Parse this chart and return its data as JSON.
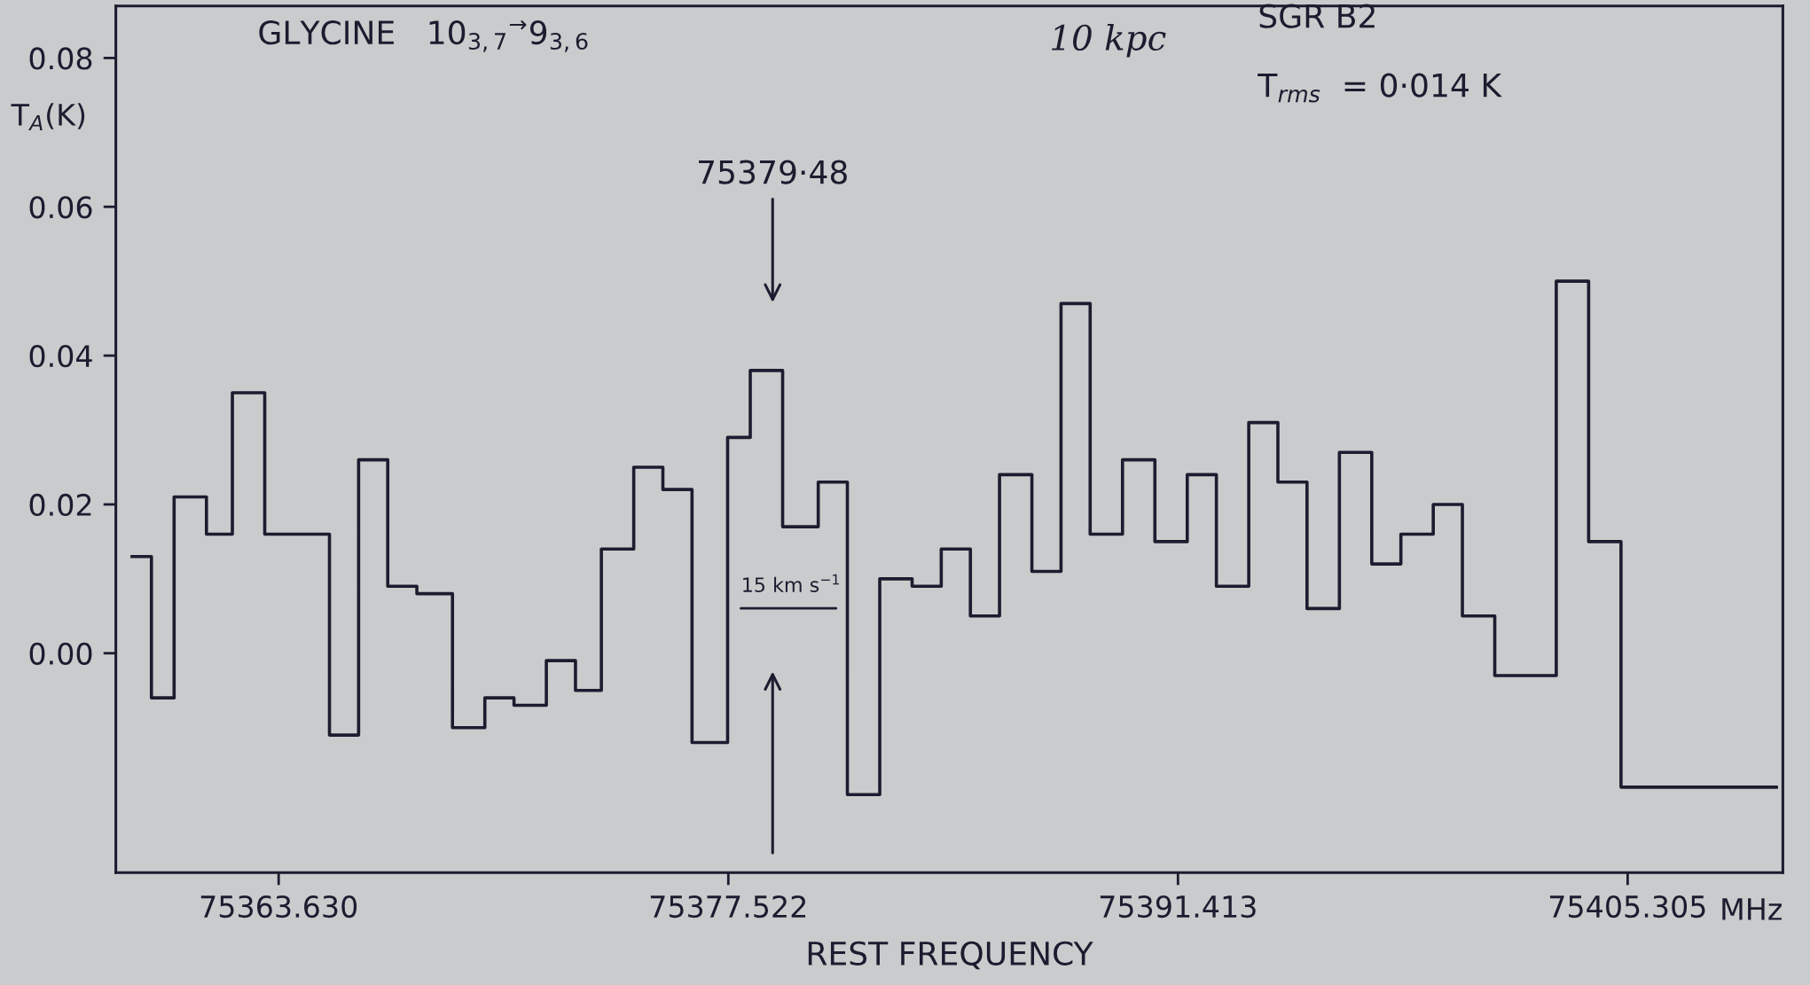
{
  "chart_data": {
    "type": "step",
    "xlabel": "REST FREQUENCY",
    "ylabel": "T$_{A}$(K)",
    "x": [
      75359.1,
      75359.7,
      75360.4,
      75361.4,
      75362.2,
      75363.2,
      75364.2,
      75365.2,
      75366.1,
      75367.0,
      75367.9,
      75369.0,
      75370.0,
      75370.9,
      75371.9,
      75372.8,
      75373.6,
      75374.6,
      75375.5,
      75376.4,
      75377.5,
      75378.2,
      75379.2,
      75380.3,
      75381.2,
      75382.2,
      75383.2,
      75384.1,
      75385.0,
      75385.9,
      75386.9,
      75387.8,
      75388.7,
      75389.7,
      75390.7,
      75391.7,
      75392.6,
      75393.6,
      75394.5,
      75395.4,
      75396.4,
      75397.4,
      75398.3,
      75399.3,
      75400.2,
      75401.2,
      75402.1,
      75403.1,
      75404.1,
      75405.1,
      75409.9
    ],
    "series": [
      {
        "color": "#1c1c30",
        "values": [
          0.013,
          -0.006,
          0.021,
          0.016,
          0.035,
          0.016,
          0.016,
          -0.011,
          0.026,
          0.009,
          0.008,
          -0.01,
          -0.006,
          -0.007,
          -0.001,
          -0.005,
          0.014,
          0.025,
          0.022,
          -0.012,
          0.029,
          0.038,
          0.017,
          0.023,
          -0.019,
          0.01,
          0.009,
          0.014,
          0.005,
          0.024,
          0.011,
          0.047,
          0.016,
          0.026,
          0.015,
          0.024,
          0.009,
          0.031,
          0.023,
          0.006,
          0.027,
          0.012,
          0.016,
          0.02,
          0.005,
          -0.003,
          -0.003,
          0.05,
          0.015,
          -0.018,
          -0.018
        ]
      }
    ],
    "xlim": [
      75358.6,
      75410.1
    ],
    "ylim": [
      -0.0295,
      0.087
    ],
    "xticks": [
      {
        "value": 75363.63,
        "label": "75363.630"
      },
      {
        "value": 75377.522,
        "label": "75377.522"
      },
      {
        "value": 75391.413,
        "label": "75391.413"
      },
      {
        "value": 75405.305,
        "label": "75405.305"
      }
    ],
    "yticks": [
      {
        "value": 0,
        "label": "0.00"
      },
      {
        "value": 0.02,
        "label": "0.02"
      },
      {
        "value": 0.04,
        "label": "0.04"
      },
      {
        "value": 0.06,
        "label": "0.06"
      },
      {
        "value": 0.08,
        "label": "0.08"
      }
    ],
    "grid": false,
    "annotations": [
      "GLYCINE   10$_{3,7}$$^{→}$9$_{3,6}$",
      "10 kpc",
      "SGR B2",
      "T$_{rms}$  = 0·014 K",
      "MHz",
      "75379·48",
      "15 km s$^{−1}$"
    ]
  }
}
